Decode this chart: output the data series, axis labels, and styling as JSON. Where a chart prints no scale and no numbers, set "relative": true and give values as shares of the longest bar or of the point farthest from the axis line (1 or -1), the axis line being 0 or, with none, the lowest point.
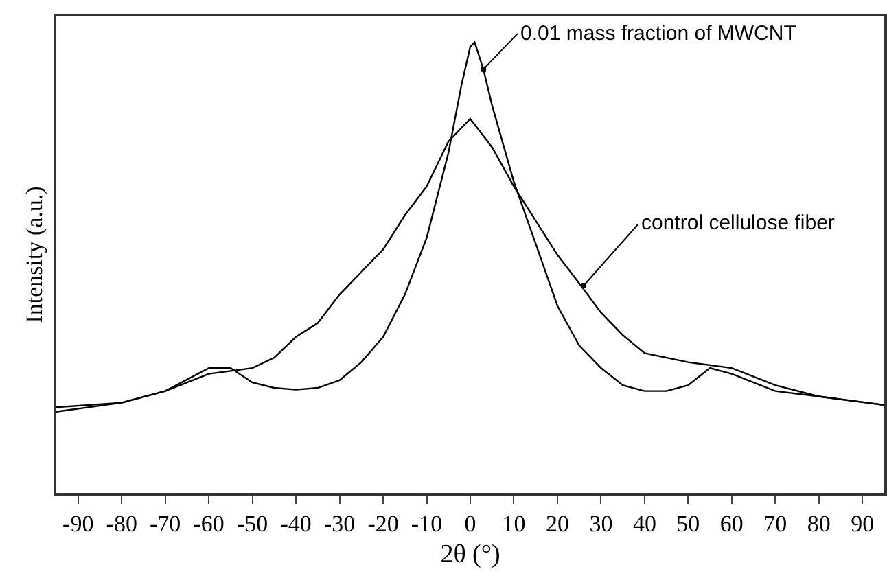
{
  "chart_data": {
    "type": "line",
    "xlabel": "2θ (°)",
    "ylabel": "Intensity (a.u.)",
    "relative": true,
    "xlim": [
      -95,
      95
    ],
    "xticks": [
      -90,
      -80,
      -70,
      -60,
      -50,
      -40,
      -30,
      -20,
      -10,
      0,
      10,
      20,
      30,
      40,
      50,
      60,
      70,
      80,
      90
    ],
    "grid": false,
    "marker": "none",
    "line_style": "solid",
    "annotations": [
      {
        "text": "0.01 mass fraction of MWCNT",
        "x": 3,
        "y": 0.94
      },
      {
        "text": "control cellulose fiber",
        "x": 26,
        "y": 0.46
      }
    ],
    "series": [
      {
        "color": "#000000",
        "x": [
          -95,
          -80,
          -70,
          -60,
          -55,
          -50,
          -45,
          -40,
          -35,
          -30,
          -25,
          -20,
          -15,
          -10,
          -5,
          -2,
          0,
          1,
          3,
          5,
          10,
          15,
          20,
          25,
          30,
          35,
          40,
          45,
          50,
          55,
          60,
          70,
          80,
          95
        ],
        "values": [
          0.19,
          0.2,
          0.226,
          0.277,
          0.277,
          0.245,
          0.233,
          0.229,
          0.233,
          0.25,
          0.29,
          0.346,
          0.44,
          0.566,
          0.755,
          0.906,
          0.99,
          1,
          0.94,
          0.86,
          0.69,
          0.553,
          0.415,
          0.327,
          0.277,
          0.239,
          0.226,
          0.226,
          0.239,
          0.277,
          0.264,
          0.226,
          0.214,
          0.195
        ]
      },
      {
        "color": "#000000",
        "x": [
          -95,
          -80,
          -70,
          -60,
          -50,
          -45,
          -40,
          -35,
          -30,
          -25,
          -20,
          -15,
          -10,
          -5,
          0,
          5,
          10,
          15,
          20,
          25,
          30,
          35,
          40,
          50,
          60,
          70,
          80,
          95
        ],
        "values": [
          0.18,
          0.2,
          0.226,
          0.264,
          0.277,
          0.3,
          0.346,
          0.377,
          0.44,
          0.49,
          0.54,
          0.616,
          0.68,
          0.78,
          0.83,
          0.767,
          0.68,
          0.604,
          0.528,
          0.465,
          0.4,
          0.35,
          0.31,
          0.29,
          0.277,
          0.239,
          0.214,
          0.195
        ]
      }
    ]
  }
}
